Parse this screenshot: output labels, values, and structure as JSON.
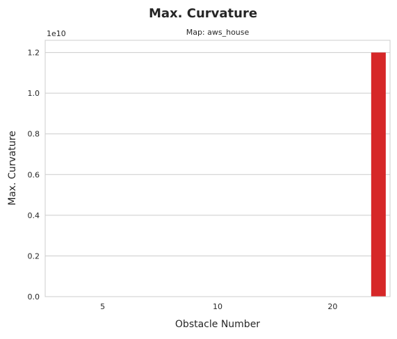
{
  "chart_data": {
    "type": "bar",
    "title": "Max. Curvature",
    "subtitle": "Map: aws_house",
    "xlabel": "Obstacle Number",
    "ylabel": "Max. Curvature",
    "y_offset_label": "1e10",
    "categories": [
      "5",
      "10",
      "20"
    ],
    "series": [
      {
        "values": [
          0,
          0,
          12000000000
        ],
        "color": "#d62728"
      }
    ],
    "ylim": [
      0,
      12600000000
    ],
    "yticks": [
      0,
      2000000000,
      4000000000,
      6000000000,
      8000000000,
      10000000000,
      12000000000
    ],
    "ytick_labels": [
      "0.0",
      "0.2",
      "0.4",
      "0.6",
      "0.8",
      "1.0",
      "1.2"
    ],
    "grid": "y",
    "colors": {
      "grid": "#cccccc",
      "axes_edge": "#cccccc",
      "text": "#262626"
    }
  }
}
